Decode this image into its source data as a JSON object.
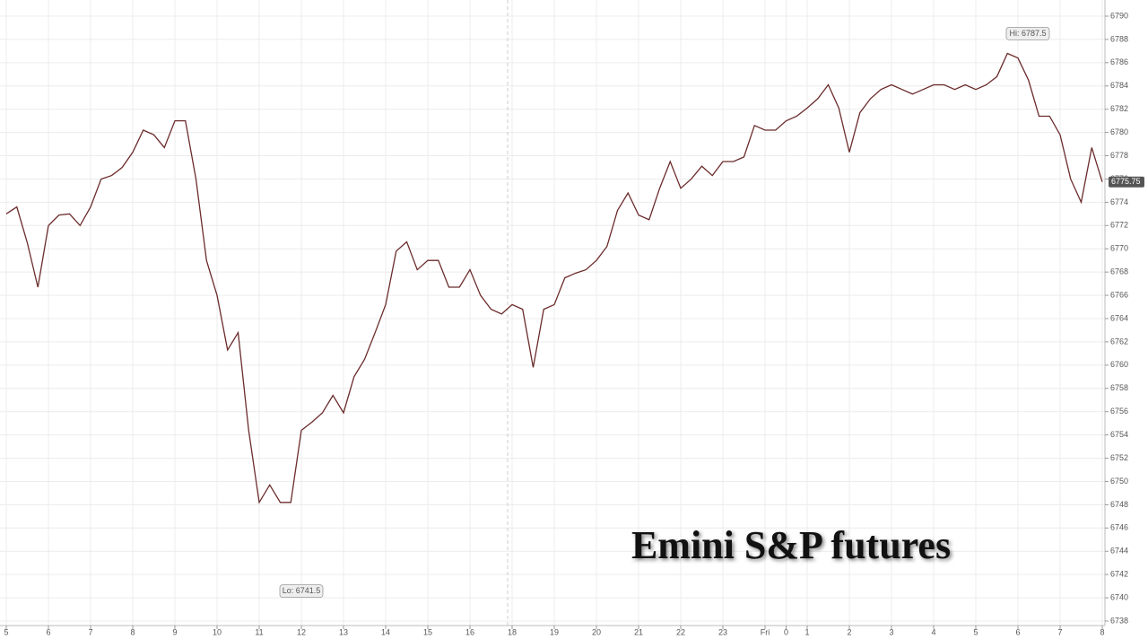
{
  "chart_data": {
    "type": "line",
    "title": "Emini S&P futures",
    "categories": [
      "5",
      null,
      null,
      null,
      "6",
      null,
      null,
      null,
      "7",
      null,
      null,
      null,
      "8",
      null,
      null,
      null,
      "9",
      null,
      null,
      null,
      "10",
      null,
      null,
      null,
      "11",
      null,
      null,
      null,
      "12",
      null,
      null,
      null,
      "13",
      null,
      null,
      null,
      "14",
      null,
      null,
      null,
      "15",
      null,
      null,
      null,
      "16",
      null,
      null,
      null,
      "18",
      null,
      null,
      null,
      "19",
      null,
      null,
      null,
      "20",
      null,
      null,
      null,
      "21",
      null,
      null,
      null,
      "22",
      null,
      null,
      null,
      "23",
      null,
      null,
      null,
      "Fri",
      null,
      "0",
      null,
      "1",
      null,
      null,
      null,
      "2",
      null,
      null,
      null,
      "3",
      null,
      null,
      null,
      "4",
      null,
      null,
      null,
      "5",
      null,
      null,
      null,
      "6",
      null,
      null,
      null,
      "7",
      null,
      null,
      null,
      "8"
    ],
    "series": [
      {
        "name": "Emini S&P futures",
        "color": "#6b2b2b",
        "values": [
          6773,
          6773.6,
          6770.5,
          6766.7,
          6772,
          6772.9,
          6773,
          6772,
          6773.6,
          6776,
          6776.3,
          6777,
          6778.3,
          6780.2,
          6779.8,
          6778.7,
          6781,
          6781,
          6776,
          6769,
          6766,
          6761.3,
          6762.8,
          6754.4,
          6748.2,
          6749.7,
          6748.2,
          6748.2,
          6754.4,
          6755.1,
          6755.9,
          6757.4,
          6755.9,
          6759,
          6760.5,
          6762.8,
          6765.2,
          6769.8,
          6770.6,
          6768.2,
          6769,
          6769,
          6766.7,
          6766.7,
          6768.2,
          6766,
          6764.8,
          6764.4,
          6765.2,
          6764.8,
          6759.8,
          6764.8,
          6765.2,
          6767.5,
          6767.9,
          6768.2,
          6769,
          6770.2,
          6773.3,
          6774.8,
          6772.9,
          6772.5,
          6775.2,
          6777.5,
          6775.2,
          6776,
          6777.1,
          6776.3,
          6777.5,
          6777.5,
          6777.9,
          6780.6,
          6780.2,
          6780.2,
          6781,
          6781.4,
          6782.1,
          6782.9,
          6784.1,
          6782.1,
          6778.3,
          6781.7,
          6782.9,
          6783.7,
          6784.1,
          6783.7,
          6783.3,
          6783.7,
          6784.1,
          6784.1,
          6783.7,
          6784.1,
          6783.7,
          6784.1,
          6784.8,
          6786.8,
          6786.4,
          6784.5,
          6781.4,
          6781.4,
          6779.8,
          6776,
          6774,
          6778.7,
          6775.75
        ]
      }
    ],
    "ylim": [
      6738,
      6790
    ],
    "yticks": [
      6738,
      6740,
      6742,
      6744,
      6746,
      6748,
      6750,
      6752,
      6754,
      6756,
      6758,
      6760,
      6762,
      6764,
      6766,
      6768,
      6770,
      6772,
      6774,
      6776,
      6778,
      6780,
      6782,
      6784,
      6786,
      6788,
      6790
    ],
    "grid": true,
    "annotations": [
      {
        "label": "Hi: 6787.5",
        "value": 6787.5
      },
      {
        "label": "Lo: 6741.5",
        "value": 6741.5
      }
    ]
  }
}
